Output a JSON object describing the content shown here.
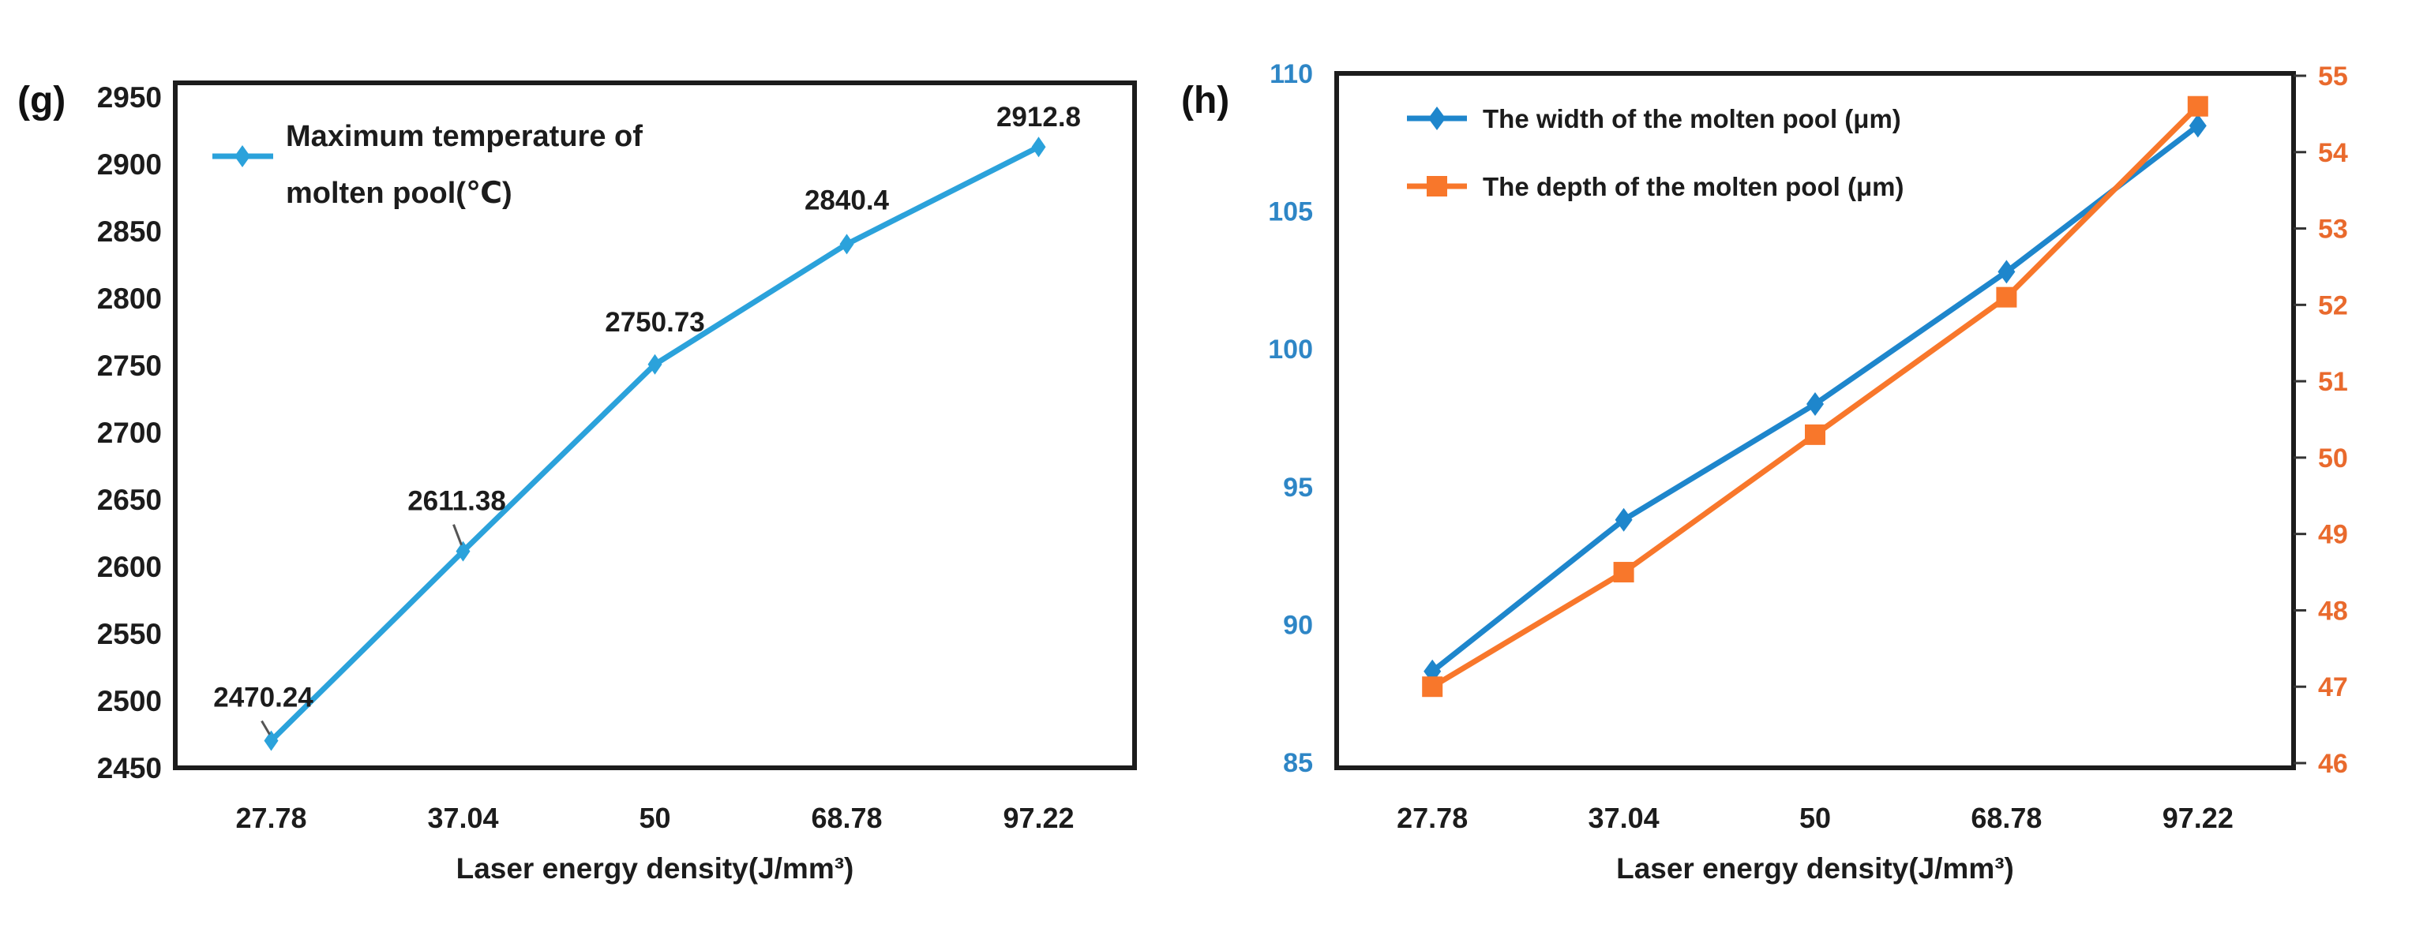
{
  "figure": {
    "panel_labels": [
      "(g)",
      "(h)"
    ]
  },
  "chart_data": [
    {
      "type": "line",
      "panel_label": "(g)",
      "title": "",
      "xlabel": "Laser energy density(J/mm³)",
      "ylabel": "",
      "categories": [
        "27.78",
        "37.04",
        "50",
        "68.78",
        "97.22"
      ],
      "ylim": [
        2450,
        2950
      ],
      "yticks": [
        "2450",
        "2500",
        "2550",
        "2600",
        "2650",
        "2700",
        "2750",
        "2800",
        "2850",
        "2900",
        "2950"
      ],
      "grid": false,
      "legend_position": "top-left-inside",
      "series": [
        {
          "name": "Maximum temperature of molten pool(℃)",
          "legend_lines": [
            "Maximum temperature of",
            "molten pool(℃)"
          ],
          "marker": "diamond",
          "color": "#2BA2DB",
          "values": [
            2470.24,
            2611.38,
            2750.73,
            2840.4,
            2912.8
          ],
          "data_labels": [
            "2470.24",
            "2611.38",
            "2750.73",
            "2840.4",
            "2912.8"
          ]
        }
      ]
    },
    {
      "type": "line",
      "panel_label": "(h)",
      "title": "",
      "xlabel": "Laser energy density(J/mm³)",
      "categories": [
        "27.78",
        "37.04",
        "50",
        "68.78",
        "97.22"
      ],
      "left_axis": {
        "lim": [
          85,
          110
        ],
        "ticks": [
          "85",
          "90",
          "95",
          "100",
          "105",
          "110"
        ],
        "label_color": "#2E86C6"
      },
      "right_axis": {
        "lim": [
          46,
          55
        ],
        "ticks": [
          "46",
          "47",
          "48",
          "49",
          "50",
          "51",
          "52",
          "53",
          "54",
          "55"
        ],
        "label_color": "#E96A2D"
      },
      "grid": false,
      "legend_position": "top-left-inside",
      "series": [
        {
          "name": "The width of the molten pool (μm)",
          "axis": "left",
          "marker": "diamond",
          "color": "#1E86CC",
          "values": [
            88.3,
            93.8,
            98.0,
            102.8,
            108.1
          ]
        },
        {
          "name": "The depth of the molten pool (μm)",
          "axis": "right",
          "marker": "square",
          "color": "#F8772B",
          "values": [
            47.0,
            48.5,
            50.3,
            52.1,
            54.6
          ]
        }
      ]
    }
  ]
}
